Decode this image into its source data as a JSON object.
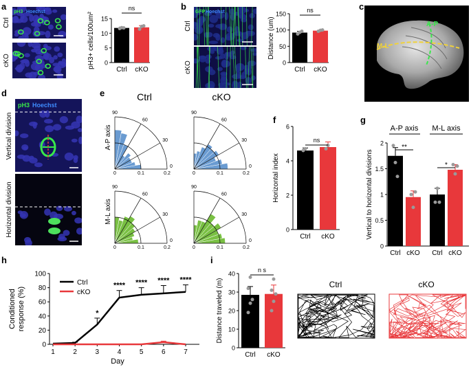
{
  "panels": {
    "a": {
      "letter": "a",
      "micrograph": {
        "stain1": "pH3",
        "stain2": "Hoechst",
        "rows": [
          "Ctrl",
          "cKO"
        ]
      },
      "chart_data": {
        "type": "bar",
        "categories": [
          "Ctrl",
          "cKO"
        ],
        "values": [
          11.8,
          12.0
        ],
        "errors": [
          0.3,
          0.6
        ],
        "points": [
          [
            11.6,
            11.9,
            11.8
          ],
          [
            11.4,
            12.3,
            12.5
          ]
        ],
        "ylabel": "pH3+ cells/100um²",
        "ylim": [
          0,
          15
        ],
        "yticks": [
          0,
          5,
          10,
          15
        ],
        "significance": "ns"
      }
    },
    "b": {
      "letter": "b",
      "micrograph": {
        "stain1": "GFP",
        "stain2": "Hoechst",
        "rows": [
          "Ctrl",
          "cKO"
        ]
      },
      "chart_data": {
        "type": "bar",
        "categories": [
          "Ctrl",
          "cKO"
        ],
        "values": [
          92,
          98
        ],
        "errors": [
          4,
          2
        ],
        "points": [
          [
            88,
            93,
            96
          ],
          [
            96,
            99,
            100
          ]
        ],
        "ylabel": "Distance (um)",
        "ylim": [
          0,
          150
        ],
        "yticks": [
          0,
          50,
          100,
          150
        ],
        "significance": "ns"
      }
    },
    "c": {
      "letter": "c",
      "axis1": "A-P",
      "axis2": "M-L"
    },
    "d": {
      "letter": "d",
      "stain1": "pH3",
      "stain2": "Hoechst",
      "labels": [
        "Vertical division",
        "Horizontal division"
      ]
    },
    "e": {
      "letter": "e",
      "columns": [
        "Ctrl",
        "cKO"
      ],
      "rows": [
        "A-P axis",
        "M-L axis"
      ],
      "angle_ticks": [
        "90",
        "60",
        "30",
        "0"
      ],
      "radial_ticks": [
        "0",
        "0.1",
        "0.2"
      ],
      "chart_data": {
        "type": "polar-histogram",
        "bin_width_deg": 10,
        "rmax": 0.2,
        "fractions": {
          "ctrl_ap": [
            0.1,
            0.08,
            0.07,
            0.07,
            0.08,
            0.06,
            0.1,
            0.14,
            0.15
          ],
          "cko_ap": [
            0.13,
            0.11,
            0.09,
            0.11,
            0.1,
            0.11,
            0.09,
            0.07,
            0.06
          ],
          "ctrl_ml": [
            0.09,
            0.07,
            0.08,
            0.09,
            0.1,
            0.12,
            0.11,
            0.09,
            0.1
          ],
          "cko_ml": [
            0.12,
            0.11,
            0.1,
            0.12,
            0.1,
            0.13,
            0.09,
            0.09,
            0.07
          ]
        }
      }
    },
    "f": {
      "letter": "f",
      "chart_data": {
        "type": "bar",
        "categories": [
          "Ctrl",
          "cKO"
        ],
        "values": [
          4.6,
          4.8
        ],
        "errors": [
          0.15,
          0.3
        ],
        "points": [
          [
            4.6,
            4.7
          ],
          [
            4.7,
            4.9
          ]
        ],
        "ylabel": "Horizontal index",
        "ylim": [
          0,
          6
        ],
        "yticks": [
          0,
          2,
          4,
          6
        ],
        "significance": "ns"
      }
    },
    "g": {
      "letter": "g",
      "chart_data": {
        "type": "bar",
        "groups": [
          "A-P axis",
          "M-L axis"
        ],
        "categories": [
          "Ctrl",
          "cKO",
          "Ctrl",
          "cKO"
        ],
        "values": [
          1.75,
          0.95,
          1.0,
          1.48
        ],
        "errors": [
          0.16,
          0.12,
          0.12,
          0.1
        ],
        "points": [
          [
            1.95,
            1.62,
            1.35
          ],
          [
            1.0,
            0.75,
            1.05
          ],
          [
            0.85,
            1.12,
            0.85
          ],
          [
            1.58,
            1.4,
            1.55
          ]
        ],
        "ylabel": "Vertical to horizontal divisions",
        "ylim": [
          0,
          2.0
        ],
        "yticks": [
          0,
          0.5,
          1.0,
          1.5,
          2.0
        ],
        "significance": [
          "**",
          "*"
        ]
      }
    },
    "h": {
      "letter": "h",
      "chart_data": {
        "type": "line",
        "x": [
          1,
          2,
          3,
          4,
          5,
          6,
          7
        ],
        "series": [
          {
            "name": "Ctrl",
            "values": [
              1,
              2,
              28,
              66,
              70,
              72,
              74
            ],
            "errors": [
              0,
              1,
              9,
              10,
              10,
              11,
              10
            ],
            "color": "#000000"
          },
          {
            "name": "cKO",
            "values": [
              0,
              0,
              0,
              0,
              0,
              3,
              0
            ],
            "errors": [
              0,
              0,
              0,
              0,
              0,
              1.5,
              0
            ],
            "color": "#e8383b"
          }
        ],
        "xlabel": "Day",
        "ylabel": "Conditioned response (%)",
        "ylim": [
          0,
          100
        ],
        "yticks": [
          0,
          20,
          40,
          60,
          80,
          100
        ],
        "stars": [
          "",
          "",
          "*",
          "****",
          "****",
          "****",
          "****"
        ]
      }
    },
    "i": {
      "letter": "i",
      "chart_data": {
        "type": "bar",
        "categories": [
          "Ctrl",
          "cKO"
        ],
        "values": [
          28.5,
          29
        ],
        "errors": [
          4.5,
          4.8
        ],
        "points": [
          [
            19,
            24,
            26,
            32,
            38
          ],
          [
            20,
            25,
            29,
            31,
            37
          ]
        ],
        "ylabel": "Distance traveled (m)",
        "ylim": [
          0,
          40
        ],
        "yticks": [
          0,
          10,
          20,
          30,
          40
        ],
        "significance": "n s"
      },
      "track_labels": [
        "Ctrl",
        "cKO"
      ]
    }
  },
  "colors": {
    "ctrl": "#000000",
    "cko": "#e8383b",
    "polar_ap": "#6a9bd1",
    "polar_ml": "#79c043",
    "point": "#9a9a9a",
    "micro_bg": "#1a1a5c",
    "nucleus": "#3535b4",
    "stain_green": "#39e84a",
    "stain_blue": "#3f8cff",
    "axis_label": "#f0d23a",
    "axis_label2": "#39e84a"
  }
}
